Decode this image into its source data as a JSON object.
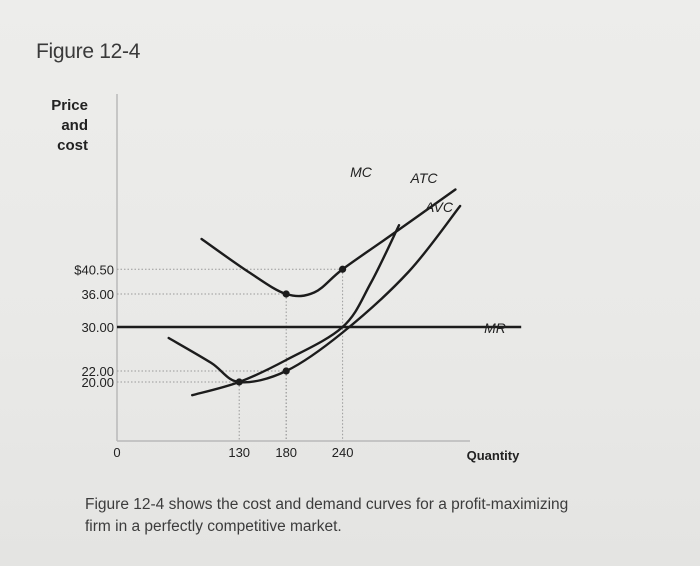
{
  "figure_title": "Figure 12-4",
  "caption": {
    "line1": "Figure 12-4 shows the cost and demand curves for a profit-maximizing",
    "line2": "firm in a perfectly competitive market."
  },
  "chart_data": {
    "type": "line",
    "ylabel_lines": [
      "Price",
      "and",
      "cost"
    ],
    "xlabel": "Quantity",
    "origin_label": "0",
    "x_ticks": [
      {
        "value": 130,
        "label": "130"
      },
      {
        "value": 180,
        "label": "180"
      },
      {
        "value": 240,
        "label": "240"
      }
    ],
    "y_ticks": [
      {
        "value": 40.5,
        "label": "$40.50"
      },
      {
        "value": 36.0,
        "label": "36.00"
      },
      {
        "value": 30.0,
        "label": "30.00"
      },
      {
        "value": 22.0,
        "label": "22.00"
      },
      {
        "value": 20.0,
        "label": "20.00"
      }
    ],
    "series": [
      {
        "name": "MC",
        "points": [
          [
            80,
            17.6
          ],
          [
            130,
            20.0
          ],
          [
            180,
            24.0
          ],
          [
            240,
            30.0
          ],
          [
            270,
            38.0
          ],
          [
            300,
            48.5
          ]
        ]
      },
      {
        "name": "ATC",
        "points": [
          [
            90,
            46.0
          ],
          [
            140,
            40.0
          ],
          [
            180,
            36.0
          ],
          [
            210,
            36.3
          ],
          [
            240,
            40.5
          ],
          [
            290,
            46.5
          ],
          [
            360,
            55.0
          ]
        ]
      },
      {
        "name": "AVC",
        "points": [
          [
            55,
            28.0
          ],
          [
            100,
            23.5
          ],
          [
            130,
            20.0
          ],
          [
            180,
            22.0
          ],
          [
            240,
            29.0
          ],
          [
            310,
            40.0
          ],
          [
            365,
            52.0
          ]
        ]
      },
      {
        "name": "MR",
        "points": [
          [
            0,
            30.0
          ],
          [
            430,
            30.0
          ]
        ]
      }
    ],
    "marked_points": [
      {
        "x": 180,
        "y": 36.0
      },
      {
        "x": 240,
        "y": 40.5
      },
      {
        "x": 130,
        "y": 20.0
      },
      {
        "x": 180,
        "y": 22.0
      }
    ],
    "guide_lines": [
      {
        "x": 130,
        "y": 20.0
      },
      {
        "x": 180,
        "y": 22.0
      },
      {
        "x": 180,
        "y": 36.0
      },
      {
        "x": 240,
        "y": 40.5
      }
    ],
    "xlim": [
      0,
      430
    ],
    "ylim": [
      0,
      60
    ]
  }
}
